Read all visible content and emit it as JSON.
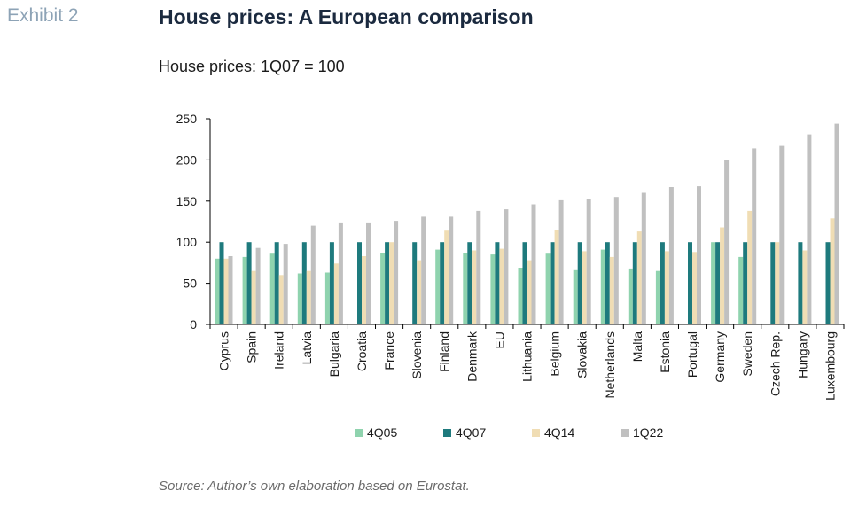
{
  "header": {
    "exhibit": "Exhibit 2",
    "title": "House prices: A European comparison",
    "subtitle": "House prices: 1Q07 = 100"
  },
  "footer": {
    "source": "Source: Author’s own elaboration based on Eurostat."
  },
  "colors": {
    "4Q05": "#8fd3ae",
    "4Q07": "#1e7a7d",
    "4Q14": "#f0ddb4",
    "1Q22": "#c0c0c0",
    "axis": "#000000"
  },
  "chart_data": {
    "type": "bar",
    "title": "House prices: A European comparison",
    "ylabel": "",
    "xlabel": "",
    "ylim": [
      0,
      250
    ],
    "yticks": [
      0,
      50,
      100,
      150,
      200,
      250
    ],
    "grid": false,
    "legend": "bottom",
    "categories": [
      "Cyprus",
      "Spain",
      "Ireland",
      "Latvia",
      "Bulgaria",
      "Croatia",
      "France",
      "Slovenia",
      "Finland",
      "Denmark",
      "EU",
      "Lithuania",
      "Belgium",
      "Slovakia",
      "Netherlands",
      "Malta",
      "Estonia",
      "Portugal",
      "Germany",
      "Sweden",
      "Czech Rep.",
      "Hungary",
      "Luxembourg"
    ],
    "series": [
      {
        "name": "4Q05",
        "values": [
          80,
          82,
          86,
          62,
          63,
          null,
          87,
          null,
          91,
          87,
          85,
          69,
          86,
          66,
          91,
          68,
          65,
          null,
          100,
          82,
          null,
          null,
          null
        ]
      },
      {
        "name": "4Q07",
        "values": [
          100,
          100,
          100,
          100,
          100,
          100,
          100,
          100,
          100,
          100,
          100,
          100,
          100,
          100,
          100,
          100,
          100,
          100,
          100,
          100,
          100,
          100,
          100
        ]
      },
      {
        "name": "4Q14",
        "values": [
          80,
          65,
          60,
          65,
          74,
          83,
          100,
          78,
          114,
          90,
          92,
          78,
          115,
          89,
          82,
          113,
          89,
          88,
          118,
          138,
          100,
          90,
          129
        ]
      },
      {
        "name": "1Q22",
        "values": [
          83,
          93,
          98,
          120,
          123,
          123,
          126,
          131,
          131,
          138,
          140,
          146,
          151,
          153,
          155,
          160,
          167,
          168,
          200,
          214,
          217,
          231,
          244
        ]
      }
    ]
  }
}
